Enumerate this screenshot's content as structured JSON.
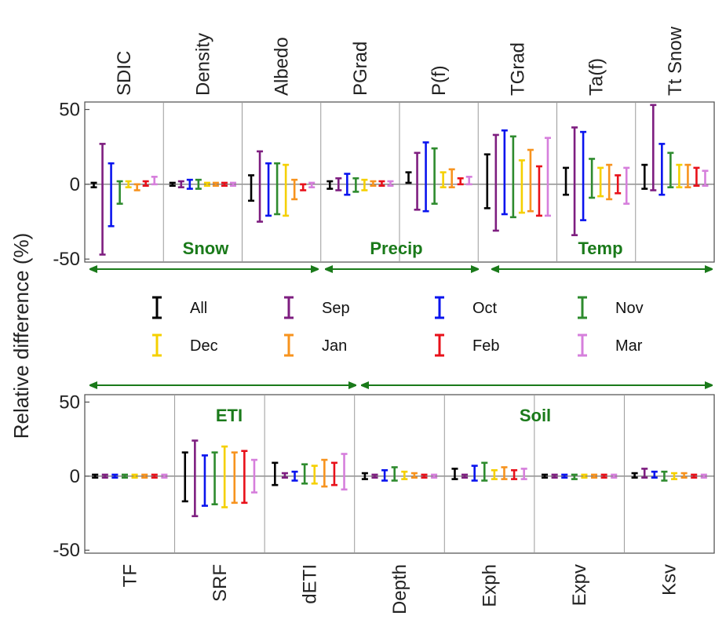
{
  "chart_data": {
    "type": "errorbar",
    "ylabel": "Relative difference (%)",
    "ylim": [
      -52,
      55
    ],
    "yticks": [
      50,
      0,
      -50
    ],
    "series": [
      {
        "name": "All",
        "color": "#000000"
      },
      {
        "name": "Sep",
        "color": "#7e1e80"
      },
      {
        "name": "Oct",
        "color": "#0a14ee"
      },
      {
        "name": "Nov",
        "color": "#2e8b2e"
      },
      {
        "name": "Dec",
        "color": "#f5d000"
      },
      {
        "name": "Jan",
        "color": "#f7931e"
      },
      {
        "name": "Feb",
        "color": "#e8101a"
      },
      {
        "name": "Mar",
        "color": "#d67fdc"
      }
    ],
    "top": {
      "groups": [
        {
          "label": "Snow",
          "params": [
            "SDIC",
            "Density",
            "Albedo"
          ]
        },
        {
          "label": "Precip",
          "params": [
            "PGrad",
            "P(f)"
          ]
        },
        {
          "label": "Temp",
          "params": [
            "TGrad",
            "Ta(f)",
            "Tt Snow"
          ]
        }
      ],
      "params": [
        {
          "name": "SDIC",
          "ranges": [
            [
              -2,
              1
            ],
            [
              -47,
              27
            ],
            [
              -28,
              14
            ],
            [
              -13,
              2
            ],
            [
              -2,
              2
            ],
            [
              -4,
              0
            ],
            [
              -1,
              2
            ],
            [
              0,
              5
            ]
          ]
        },
        {
          "name": "Density",
          "ranges": [
            [
              -1,
              1
            ],
            [
              -2,
              2
            ],
            [
              -3,
              3
            ],
            [
              -3,
              3
            ],
            [
              -1,
              1
            ],
            [
              -1,
              1
            ],
            [
              -1,
              1
            ],
            [
              -1,
              1
            ]
          ]
        },
        {
          "name": "Albedo",
          "ranges": [
            [
              -11,
              6
            ],
            [
              -25,
              22
            ],
            [
              -21,
              14
            ],
            [
              -20,
              14
            ],
            [
              -21,
              13
            ],
            [
              -10,
              3
            ],
            [
              -4,
              0
            ],
            [
              -2,
              1
            ]
          ]
        },
        {
          "name": "PGrad",
          "ranges": [
            [
              -3,
              2
            ],
            [
              -4,
              4
            ],
            [
              -7,
              7
            ],
            [
              -5,
              4
            ],
            [
              -4,
              3
            ],
            [
              -1,
              2
            ],
            [
              -1,
              2
            ],
            [
              -1,
              2
            ]
          ]
        },
        {
          "name": "P(f)",
          "ranges": [
            [
              1,
              8
            ],
            [
              -17,
              21
            ],
            [
              -18,
              28
            ],
            [
              -13,
              24
            ],
            [
              -2,
              8
            ],
            [
              -2,
              10
            ],
            [
              0,
              4
            ],
            [
              0,
              5
            ]
          ]
        },
        {
          "name": "TGrad",
          "ranges": [
            [
              -16,
              20
            ],
            [
              -31,
              33
            ],
            [
              -20,
              36
            ],
            [
              -22,
              32
            ],
            [
              -19,
              16
            ],
            [
              -18,
              23
            ],
            [
              -21,
              12
            ],
            [
              -21,
              31
            ]
          ]
        },
        {
          "name": "Ta(f)",
          "ranges": [
            [
              -7,
              11
            ],
            [
              -34,
              38
            ],
            [
              -24,
              35
            ],
            [
              -9,
              17
            ],
            [
              -8,
              11
            ],
            [
              -10,
              13
            ],
            [
              -6,
              6
            ],
            [
              -13,
              11
            ]
          ]
        },
        {
          "name": "Tt Snow",
          "ranges": [
            [
              -3,
              13
            ],
            [
              -4,
              53
            ],
            [
              -7,
              27
            ],
            [
              -2,
              21
            ],
            [
              -2,
              13
            ],
            [
              -2,
              13
            ],
            [
              -1,
              11
            ],
            [
              -1,
              9
            ]
          ]
        }
      ]
    },
    "bottom": {
      "groups": [
        {
          "label": "ETI",
          "params": [
            "TF",
            "SRF",
            "dETI"
          ]
        },
        {
          "label": "Soil",
          "params": [
            "Depth",
            "Exph",
            "Expv",
            "Ksv"
          ]
        }
      ],
      "params": [
        {
          "name": "TF",
          "ranges": [
            [
              -1,
              1
            ],
            [
              -1,
              1
            ],
            [
              -1,
              1
            ],
            [
              -1,
              1
            ],
            [
              -1,
              1
            ],
            [
              -1,
              1
            ],
            [
              -1,
              1
            ],
            [
              -1,
              1
            ]
          ]
        },
        {
          "name": "SRF",
          "ranges": [
            [
              -17,
              16
            ],
            [
              -27,
              24
            ],
            [
              -20,
              14
            ],
            [
              -19,
              16
            ],
            [
              -21,
              20
            ],
            [
              -18,
              16
            ],
            [
              -18,
              17
            ],
            [
              -11,
              11
            ]
          ]
        },
        {
          "name": "dETI",
          "ranges": [
            [
              -6,
              9
            ],
            [
              -1,
              2
            ],
            [
              -3,
              3
            ],
            [
              -5,
              8
            ],
            [
              -5,
              7
            ],
            [
              -7,
              11
            ],
            [
              -6,
              9
            ],
            [
              -9,
              15
            ]
          ]
        },
        {
          "name": "Depth",
          "ranges": [
            [
              -2,
              2
            ],
            [
              -1,
              1
            ],
            [
              -3,
              4
            ],
            [
              -3,
              6
            ],
            [
              -2,
              3
            ],
            [
              -1,
              2
            ],
            [
              -1,
              1
            ],
            [
              -1,
              1
            ]
          ]
        },
        {
          "name": "Exph",
          "ranges": [
            [
              -2,
              5
            ],
            [
              -1,
              1
            ],
            [
              -3,
              7
            ],
            [
              -3,
              9
            ],
            [
              -2,
              4
            ],
            [
              -2,
              6
            ],
            [
              -2,
              4
            ],
            [
              -2,
              5
            ]
          ]
        },
        {
          "name": "Expv",
          "ranges": [
            [
              -1,
              1
            ],
            [
              -1,
              1
            ],
            [
              -1,
              1
            ],
            [
              -2,
              1
            ],
            [
              -1,
              1
            ],
            [
              -1,
              1
            ],
            [
              -1,
              1
            ],
            [
              -1,
              1
            ]
          ]
        },
        {
          "name": "Ksv",
          "ranges": [
            [
              -1,
              2
            ],
            [
              -1,
              5
            ],
            [
              -1,
              3
            ],
            [
              -3,
              3
            ],
            [
              -2,
              2
            ],
            [
              -1,
              2
            ],
            [
              -1,
              1
            ],
            [
              -1,
              1
            ]
          ]
        }
      ]
    }
  }
}
